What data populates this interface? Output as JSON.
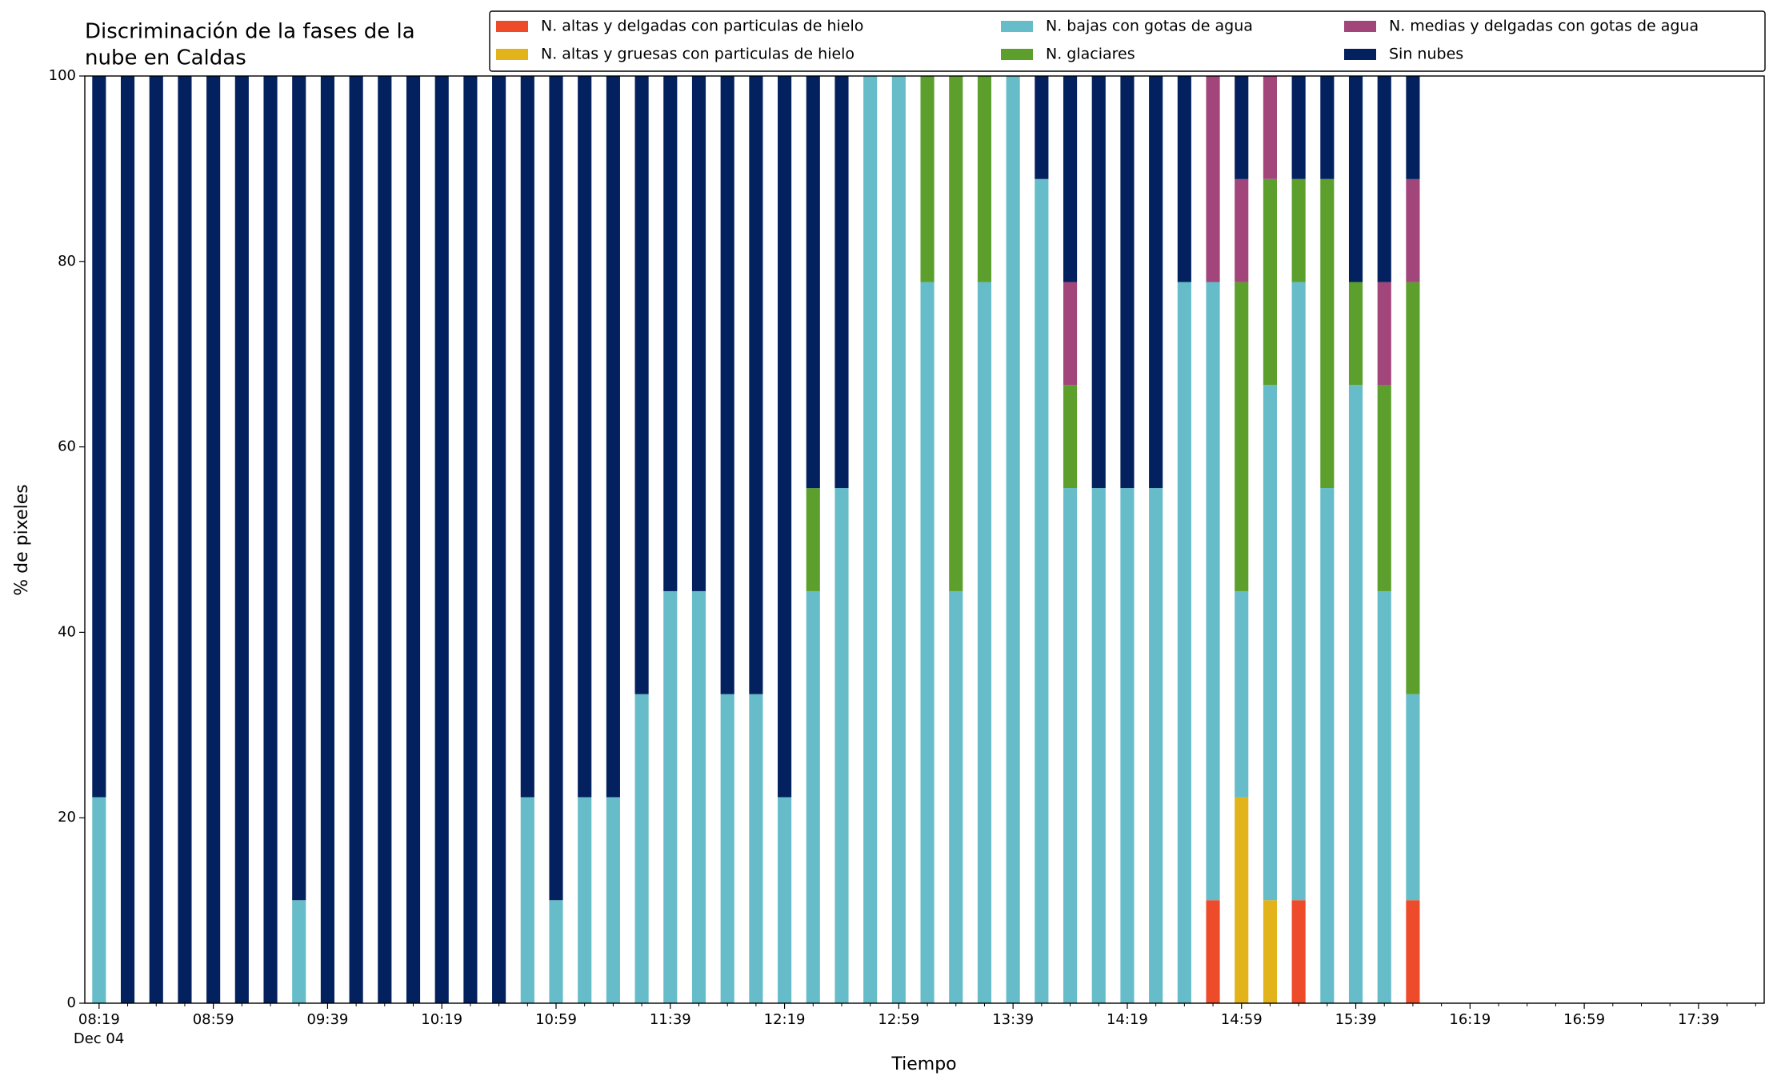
{
  "chart_data": {
    "type": "stacked_bar",
    "title": [
      "Discriminación de la fases de la",
      "nube en Caldas"
    ],
    "xlabel": "Tiempo",
    "ylabel": "% de pixeles",
    "x": [
      "08:19",
      "08:29",
      "08:39",
      "08:49",
      "08:59",
      "09:09",
      "09:19",
      "09:29",
      "09:39",
      "09:49",
      "09:59",
      "10:09",
      "10:19",
      "10:29",
      "10:39",
      "10:49",
      "10:59",
      "11:09",
      "11:19",
      "11:29",
      "11:39",
      "11:49",
      "11:59",
      "12:09",
      "12:19",
      "12:29",
      "12:39",
      "12:49",
      "12:59",
      "13:09",
      "13:19",
      "13:29",
      "13:39",
      "13:49",
      "13:59",
      "14:09",
      "14:19",
      "14:29",
      "14:39",
      "14:49",
      "14:59",
      "15:09",
      "15:19",
      "15:29",
      "15:39",
      "15:49",
      "15:59"
    ],
    "series": [
      {
        "name": "N. altas y delgadas con particulas de hielo",
        "color": "#ee4b2b",
        "values": [
          0,
          0,
          0,
          0,
          0,
          0,
          0,
          0,
          0,
          0,
          0,
          0,
          0,
          0,
          0,
          0,
          0,
          0,
          0,
          0,
          0,
          0,
          0,
          0,
          0,
          0,
          0,
          0,
          0,
          0,
          0,
          0,
          0,
          0,
          0,
          0,
          0,
          0,
          0,
          11.11,
          0,
          0,
          11.11,
          0,
          0,
          0,
          11.11
        ]
      },
      {
        "name": "N. altas y gruesas con particulas de hielo",
        "color": "#e3b31b",
        "values": [
          0,
          0,
          0,
          0,
          0,
          0,
          0,
          0,
          0,
          0,
          0,
          0,
          0,
          0,
          0,
          0,
          0,
          0,
          0,
          0,
          0,
          0,
          0,
          0,
          0,
          0,
          0,
          0,
          0,
          0,
          0,
          0,
          0,
          0,
          0,
          0,
          0,
          0,
          0,
          0,
          22.22,
          11.11,
          0,
          0,
          0,
          0,
          0
        ]
      },
      {
        "name": "N. bajas con gotas de agua",
        "color": "#66bdc9",
        "values": [
          22.22,
          0,
          0,
          0,
          0,
          0,
          0,
          11.11,
          0,
          0,
          0,
          0,
          0,
          0,
          0,
          22.22,
          11.11,
          22.22,
          22.22,
          33.33,
          44.44,
          44.44,
          33.33,
          33.33,
          22.22,
          44.44,
          55.56,
          100,
          100,
          77.78,
          44.44,
          77.78,
          100,
          88.89,
          55.56,
          55.56,
          55.56,
          55.56,
          77.78,
          66.67,
          22.22,
          55.56,
          66.67,
          55.56,
          66.67,
          44.44,
          22.22
        ]
      },
      {
        "name": "N. glaciares",
        "color": "#5c9f2d",
        "values": [
          0,
          0,
          0,
          0,
          0,
          0,
          0,
          0,
          0,
          0,
          0,
          0,
          0,
          0,
          0,
          0,
          0,
          0,
          0,
          0,
          0,
          0,
          0,
          0,
          0,
          11.11,
          0,
          0,
          0,
          22.22,
          55.56,
          22.22,
          0,
          0,
          11.11,
          0,
          0,
          0,
          0,
          0,
          33.33,
          22.22,
          11.11,
          33.33,
          11.11,
          22.22,
          44.44
        ]
      },
      {
        "name": "N. medias y delgadas con gotas de agua",
        "color": "#a2457a",
        "values": [
          0,
          0,
          0,
          0,
          0,
          0,
          0,
          0,
          0,
          0,
          0,
          0,
          0,
          0,
          0,
          0,
          0,
          0,
          0,
          0,
          0,
          0,
          0,
          0,
          0,
          0,
          0,
          0,
          0,
          0,
          0,
          0,
          0,
          0,
          11.11,
          0,
          0,
          0,
          0,
          22.22,
          11.11,
          11.11,
          0,
          0,
          0,
          11.11,
          11.11
        ]
      },
      {
        "name": "Sin nubes",
        "color": "#03215f",
        "values": [
          77.78,
          100,
          100,
          100,
          100,
          100,
          100,
          88.89,
          100,
          100,
          100,
          100,
          100,
          100,
          100,
          77.78,
          88.89,
          77.78,
          77.78,
          66.67,
          55.56,
          55.56,
          66.67,
          66.67,
          77.78,
          44.44,
          44.44,
          0,
          0,
          0,
          0,
          0,
          0,
          11.11,
          22.22,
          44.44,
          44.44,
          44.44,
          22.22,
          0,
          11.11,
          0,
          11.11,
          11.11,
          22.22,
          22.22,
          11.11
        ]
      }
    ],
    "xlim": [
      "08:14",
      "18:02"
    ],
    "xticks": [
      "08:19",
      "08:59",
      "09:39",
      "10:19",
      "10:59",
      "11:39",
      "12:19",
      "12:59",
      "13:39",
      "14:19",
      "14:59",
      "15:39",
      "16:19",
      "16:59",
      "17:39"
    ],
    "xminorticks": [
      "08:29",
      "08:39",
      "08:49",
      "09:09",
      "09:19",
      "09:29",
      "09:49",
      "09:59",
      "10:09",
      "10:29",
      "10:39",
      "10:49",
      "11:09",
      "11:19",
      "11:29",
      "11:49",
      "11:59",
      "12:09",
      "12:29",
      "12:39",
      "12:49",
      "13:09",
      "13:19",
      "13:29",
      "13:49",
      "13:59",
      "14:09",
      "14:29",
      "14:39",
      "14:49",
      "15:09",
      "15:19",
      "15:29",
      "15:49",
      "15:59",
      "16:09",
      "16:29",
      "16:39",
      "16:49",
      "17:09",
      "17:19",
      "17:29",
      "17:49",
      "17:59"
    ],
    "date_label": "Dec 04",
    "ylim": [
      0,
      100
    ],
    "yticks": [
      0,
      20,
      40,
      60,
      80,
      100
    ],
    "legend": "upper right"
  }
}
